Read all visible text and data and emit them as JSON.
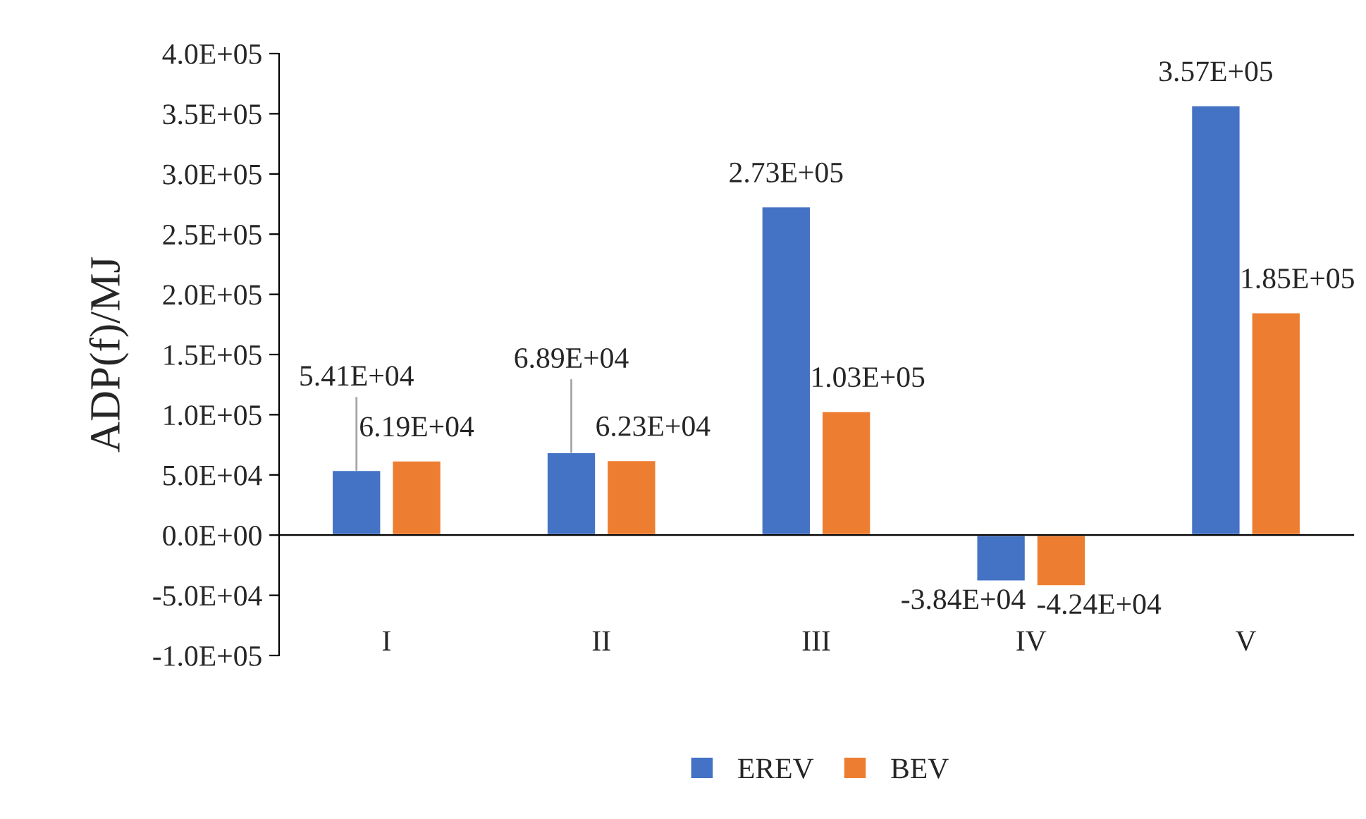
{
  "chart_data": {
    "type": "bar",
    "ylabel": "ADP(f)/MJ",
    "categories": [
      "I",
      "II",
      "III",
      "IV",
      "V"
    ],
    "series": [
      {
        "name": "EREV",
        "color": "#4472c4",
        "values": [
          54100,
          68900,
          273000,
          -38400,
          357000
        ],
        "value_labels": [
          "5.41E+04",
          "6.89E+04",
          "2.73E+05",
          "-3.84E+04",
          "3.57E+05"
        ]
      },
      {
        "name": "BEV",
        "color": "#ed7d31",
        "values": [
          61900,
          62300,
          103000,
          -42400,
          185000
        ],
        "value_labels": [
          "6.19E+04",
          "6.23E+04",
          "1.03E+05",
          "-4.24E+04",
          "1.85E+05"
        ]
      }
    ],
    "ylim": [
      -100000,
      400000
    ],
    "yticks": [
      {
        "value": -100000,
        "label": "-1.0E+05"
      },
      {
        "value": -50000,
        "label": "-5.0E+04"
      },
      {
        "value": 0,
        "label": "0.0E+00"
      },
      {
        "value": 50000,
        "label": "5.0E+04"
      },
      {
        "value": 100000,
        "label": "1.0E+05"
      },
      {
        "value": 150000,
        "label": "1.5E+05"
      },
      {
        "value": 200000,
        "label": "2.0E+05"
      },
      {
        "value": 250000,
        "label": "2.5E+05"
      },
      {
        "value": 300000,
        "label": "3.0E+05"
      },
      {
        "value": 350000,
        "label": "3.5E+05"
      },
      {
        "value": 400000,
        "label": "4.0E+05"
      }
    ],
    "legend": "bottom"
  }
}
